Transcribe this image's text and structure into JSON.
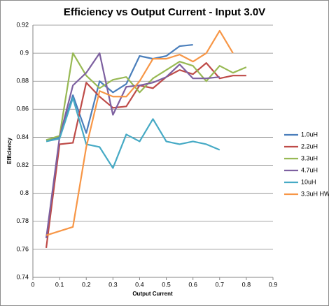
{
  "chart_data": {
    "type": "line",
    "title": "Efficiency vs Output Current - Input 3.0V",
    "x_label": "Output Current",
    "y_label": "Efficiency",
    "xlim": [
      0,
      0.9
    ],
    "xticks": [
      0,
      0.1,
      0.2,
      0.3,
      0.4,
      0.5,
      0.6,
      0.7,
      0.8,
      0.9
    ],
    "ylim": [
      0.74,
      0.92
    ],
    "yticks": [
      0.74,
      0.76,
      0.78,
      0.8,
      0.82,
      0.84,
      0.86,
      0.88,
      0.9,
      0.92
    ],
    "grid": true,
    "legend": "right",
    "series": [
      {
        "name": "1.0uH",
        "color": "#4a7ebb",
        "x": [
          0.05,
          0.1,
          0.15,
          0.2,
          0.25,
          0.3,
          0.35,
          0.4,
          0.45,
          0.5,
          0.55,
          0.6
        ],
        "values": [
          0.838,
          0.84,
          0.87,
          0.843,
          0.88,
          0.872,
          0.878,
          0.898,
          0.896,
          0.898,
          0.905,
          0.906
        ]
      },
      {
        "name": "2.2uH",
        "color": "#be4b48",
        "x": [
          0.05,
          0.1,
          0.15,
          0.2,
          0.25,
          0.3,
          0.35,
          0.4,
          0.45,
          0.5,
          0.55,
          0.6,
          0.65,
          0.7,
          0.75,
          0.8
        ],
        "values": [
          0.761,
          0.835,
          0.836,
          0.879,
          0.869,
          0.861,
          0.862,
          0.877,
          0.875,
          0.883,
          0.888,
          0.885,
          0.893,
          0.882,
          0.884,
          0.884
        ]
      },
      {
        "name": "3.3uH",
        "color": "#98b954",
        "x": [
          0.05,
          0.1,
          0.15,
          0.2,
          0.25,
          0.3,
          0.35,
          0.4,
          0.45,
          0.5,
          0.55,
          0.6,
          0.65,
          0.7,
          0.75,
          0.8
        ],
        "values": [
          0.838,
          0.841,
          0.9,
          0.884,
          0.875,
          0.881,
          0.883,
          0.872,
          0.882,
          0.888,
          0.894,
          0.891,
          0.88,
          0.891,
          0.886,
          0.89
        ]
      },
      {
        "name": "4.7uH",
        "color": "#7d60a0",
        "x": [
          0.05,
          0.1,
          0.15,
          0.2,
          0.25,
          0.3,
          0.35,
          0.4,
          0.45,
          0.5,
          0.55,
          0.6,
          0.65,
          0.7
        ],
        "values": [
          0.768,
          0.84,
          0.877,
          0.886,
          0.9,
          0.856,
          0.876,
          0.877,
          0.879,
          0.883,
          0.892,
          0.882,
          0.882,
          0.883
        ]
      },
      {
        "name": "10uH",
        "color": "#46aac5",
        "x": [
          0.05,
          0.1,
          0.15,
          0.2,
          0.25,
          0.3,
          0.35,
          0.4,
          0.45,
          0.5,
          0.55,
          0.6,
          0.65,
          0.7
        ],
        "values": [
          0.837,
          0.839,
          0.868,
          0.835,
          0.833,
          0.818,
          0.842,
          0.837,
          0.853,
          0.837,
          0.835,
          0.837,
          0.835,
          0.831
        ]
      },
      {
        "name": "3.3uH HW",
        "color": "#f79646",
        "x": [
          0.05,
          0.1,
          0.15,
          0.2,
          0.25,
          0.3,
          0.35,
          0.4,
          0.45,
          0.5,
          0.55,
          0.6,
          0.65,
          0.7,
          0.75
        ],
        "values": [
          0.77,
          0.773,
          0.776,
          0.833,
          0.873,
          0.869,
          0.869,
          0.88,
          0.896,
          0.896,
          0.899,
          0.894,
          0.9,
          0.916,
          0.9
        ]
      }
    ]
  }
}
